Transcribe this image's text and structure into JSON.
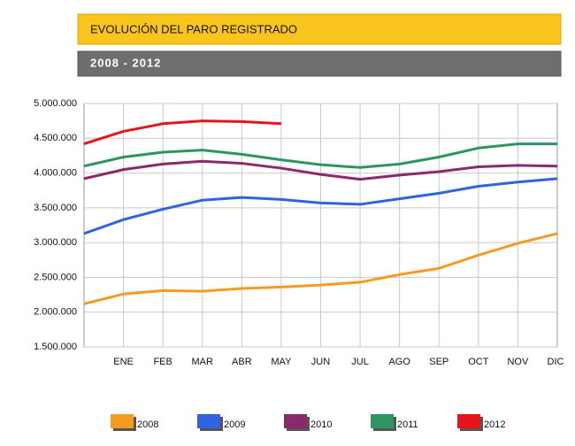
{
  "chart_data": {
    "type": "line",
    "title": "EVOLUCIÓN DEL PARO REGISTRADO",
    "subtitle": "2008 - 2012",
    "categories": [
      null,
      "ENE",
      "FEB",
      "MAR",
      "ABR",
      "MAY",
      "JUN",
      "JUL",
      "AGO",
      "SEP",
      "OCT",
      "NOV",
      "DIC"
    ],
    "series": [
      {
        "name": "2008",
        "color": "#f59a23",
        "values": [
          2120000,
          2260000,
          2310000,
          2300000,
          2340000,
          2360000,
          2390000,
          2430000,
          2540000,
          2630000,
          2820000,
          2990000,
          3130000
        ]
      },
      {
        "name": "2009",
        "color": "#2f63e0",
        "values": [
          3130000,
          3330000,
          3480000,
          3610000,
          3650000,
          3620000,
          3570000,
          3550000,
          3630000,
          3710000,
          3810000,
          3870000,
          3920000
        ]
      },
      {
        "name": "2010",
        "color": "#8b2a6b",
        "values": [
          3920000,
          4050000,
          4130000,
          4170000,
          4140000,
          4070000,
          3980000,
          3910000,
          3970000,
          4020000,
          4090000,
          4110000,
          4100000
        ]
      },
      {
        "name": "2011",
        "color": "#2e9460",
        "values": [
          4100000,
          4230000,
          4300000,
          4330000,
          4270000,
          4190000,
          4120000,
          4080000,
          4130000,
          4230000,
          4360000,
          4420000,
          4420000
        ]
      },
      {
        "name": "2012",
        "color": "#e8141b",
        "values": [
          4420000,
          4600000,
          4710000,
          4750000,
          4740000,
          4710000,
          null,
          null,
          null,
          null,
          null,
          null,
          null
        ]
      }
    ],
    "ylim": [
      1500000,
      5000000
    ],
    "yticks": [
      {
        "value": 1500000,
        "label": "1.500.000"
      },
      {
        "value": 2000000,
        "label": "2.000.000"
      },
      {
        "value": 2500000,
        "label": "2.500.000"
      },
      {
        "value": 3000000,
        "label": "3.000.000"
      },
      {
        "value": 3500000,
        "label": "3.500.000"
      },
      {
        "value": 4000000,
        "label": "4.000.000"
      },
      {
        "value": 4500000,
        "label": "4.500.000"
      },
      {
        "value": 5000000,
        "label": "5.000.000"
      }
    ],
    "grid": true,
    "legend": "bottom"
  }
}
